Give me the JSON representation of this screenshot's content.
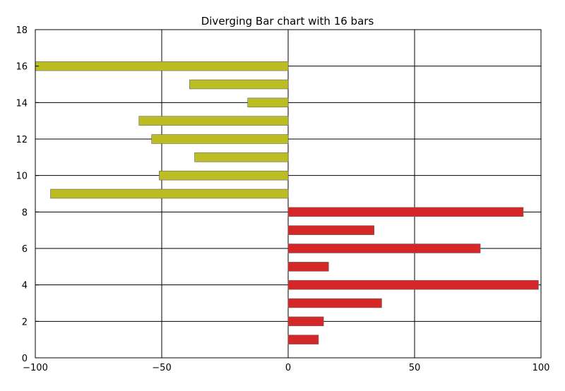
{
  "chart_data": {
    "type": "bar",
    "orientation": "horizontal",
    "title": "Diverging Bar chart with 16 bars",
    "xlabel": "",
    "ylabel": "",
    "xlim": [
      -100,
      100
    ],
    "ylim": [
      0,
      18
    ],
    "x_ticks": [
      -100,
      -50,
      0,
      50,
      100
    ],
    "y_ticks": [
      0,
      2,
      4,
      6,
      8,
      10,
      12,
      14,
      16,
      18
    ],
    "grid": true,
    "legend": "none",
    "bar_height": 0.5,
    "bars": [
      {
        "y": 1,
        "value": 12,
        "color": "#d62728"
      },
      {
        "y": 2,
        "value": 14,
        "color": "#d62728"
      },
      {
        "y": 3,
        "value": 37,
        "color": "#d62728"
      },
      {
        "y": 4,
        "value": 99,
        "color": "#d62728"
      },
      {
        "y": 5,
        "value": 16,
        "color": "#d62728"
      },
      {
        "y": 6,
        "value": 76,
        "color": "#d62728"
      },
      {
        "y": 7,
        "value": 34,
        "color": "#d62728"
      },
      {
        "y": 8,
        "value": 93,
        "color": "#d62728"
      },
      {
        "y": 9,
        "value": -94,
        "color": "#bcbd22"
      },
      {
        "y": 10,
        "value": -51,
        "color": "#bcbd22"
      },
      {
        "y": 11,
        "value": -37,
        "color": "#bcbd22"
      },
      {
        "y": 12,
        "value": -54,
        "color": "#bcbd22"
      },
      {
        "y": 13,
        "value": -59,
        "color": "#bcbd22"
      },
      {
        "y": 14,
        "value": -16,
        "color": "#bcbd22"
      },
      {
        "y": 15,
        "value": -39,
        "color": "#bcbd22"
      },
      {
        "y": 16,
        "value": -100,
        "color": "#bcbd22"
      }
    ],
    "colors": {
      "positive": "#d62728",
      "negative": "#bcbd22",
      "bar_edge": "#666666",
      "grid": "#000000",
      "axes": "#000000"
    }
  }
}
